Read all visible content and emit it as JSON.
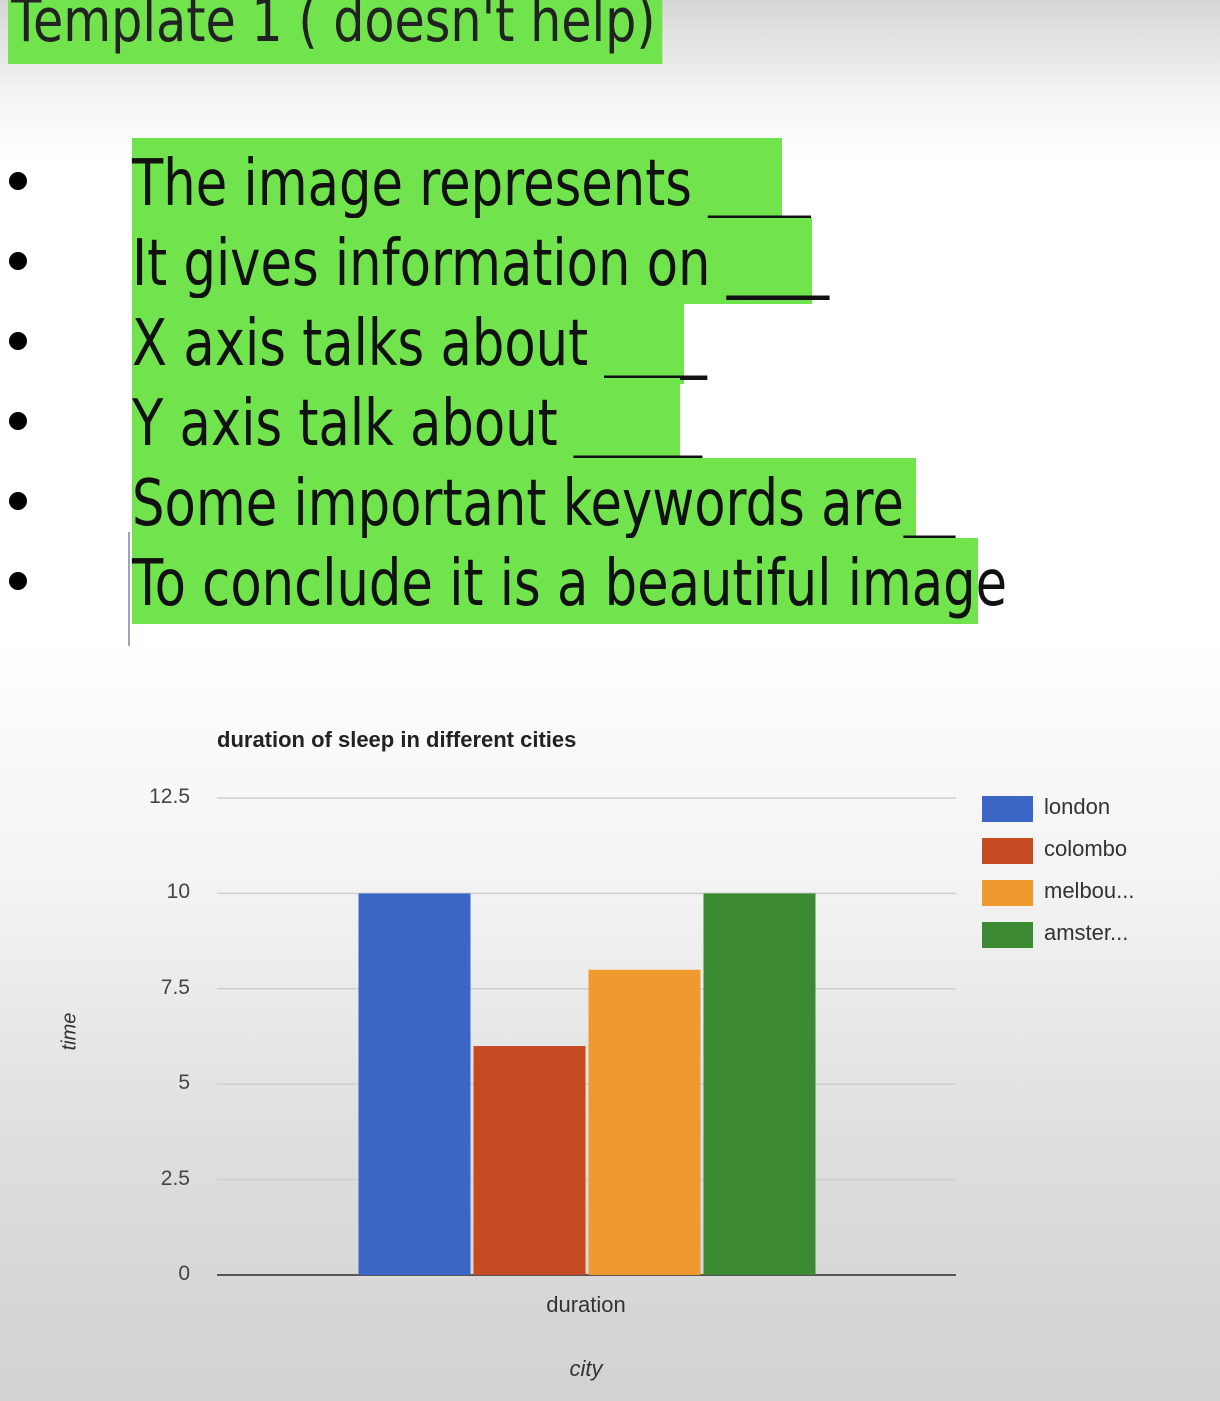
{
  "slide": {
    "title": "Template 1 ( doesn't help)",
    "bullets": [
      "The image represents ____",
      "It gives information on ____",
      "X axis talks about ____",
      "Y axis talk about _____",
      "Some important keywords are__",
      "To conclude it is a beautiful image"
    ],
    "highlight_color": "#70e34d"
  },
  "chart_data": {
    "type": "bar",
    "title": "duration of sleep in different cities",
    "xlabel": "city",
    "ylabel": "time",
    "categories": [
      "duration"
    ],
    "series": [
      {
        "name": "london",
        "values": [
          10
        ],
        "color": "#3b66c6"
      },
      {
        "name": "colombo",
        "values": [
          6
        ],
        "color": "#c54a22"
      },
      {
        "name": "melbou...",
        "values": [
          8
        ],
        "color": "#ef9a2e"
      },
      {
        "name": "amster...",
        "values": [
          10
        ],
        "color": "#3b8a31"
      }
    ],
    "ylim": [
      0,
      12.5
    ],
    "yticks": [
      "12.5",
      "10",
      "7.5",
      "5",
      "2.5",
      "0"
    ],
    "grid": true,
    "legend_position": "right"
  }
}
